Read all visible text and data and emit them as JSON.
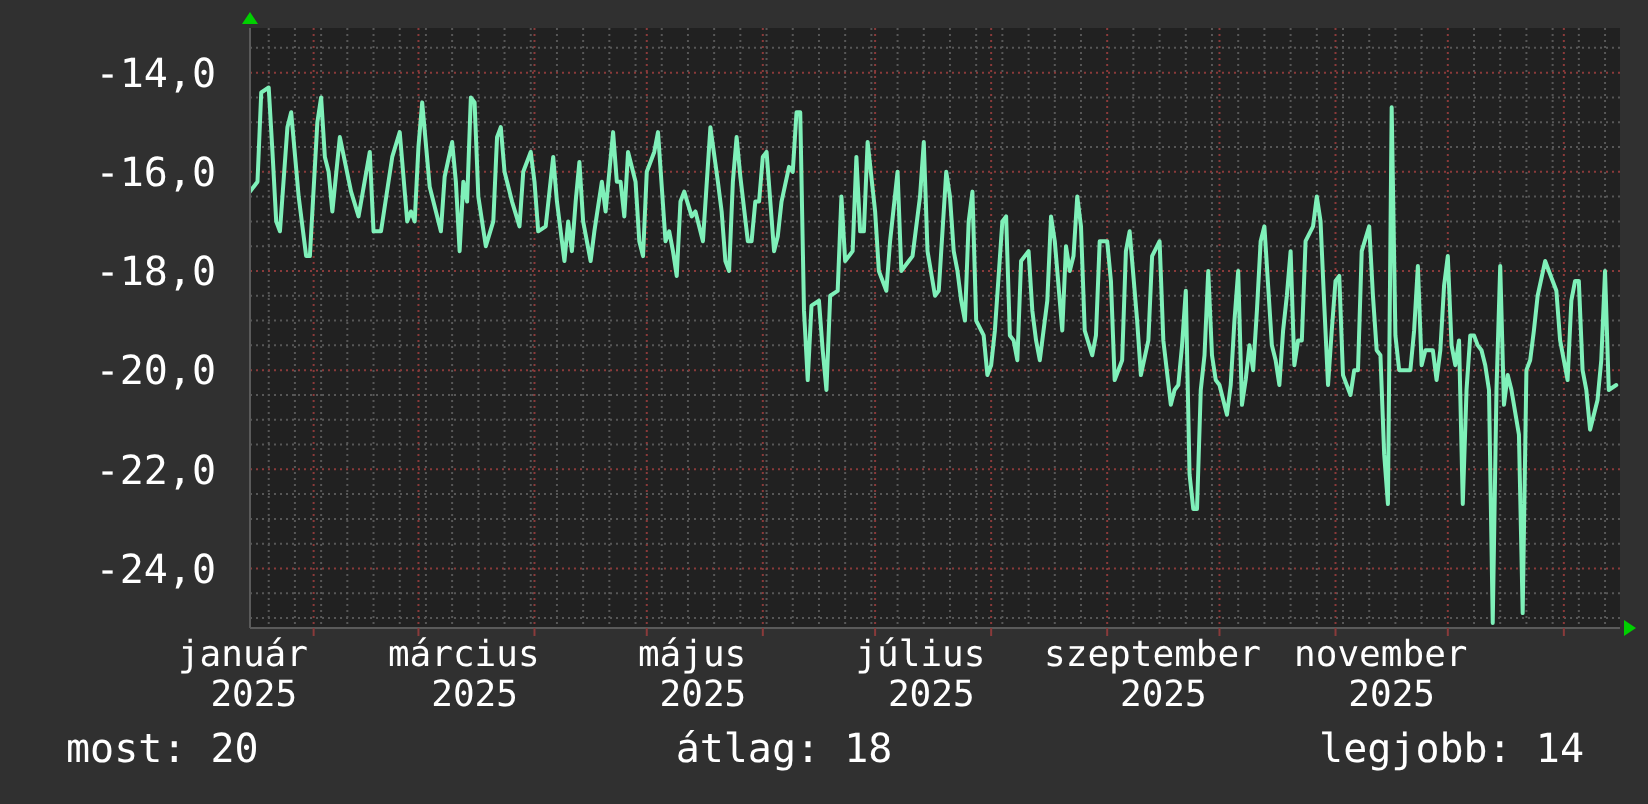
{
  "chart_data": {
    "type": "line",
    "color": "#7ff0b9",
    "x": [
      "2025-01-15",
      "2025-01-17",
      "2025-01-18",
      "2025-01-20",
      "2025-01-21",
      "2025-01-22",
      "2025-01-23",
      "2025-01-25",
      "2025-01-26",
      "2025-01-28",
      "2025-01-30",
      "2025-01-31",
      "2025-02-02",
      "2025-02-03",
      "2025-02-04",
      "2025-02-05",
      "2025-02-06",
      "2025-02-08",
      "2025-02-11",
      "2025-02-13",
      "2025-02-16",
      "2025-02-17",
      "2025-02-19",
      "2025-02-22",
      "2025-02-24",
      "2025-02-26",
      "2025-02-27",
      "2025-02-28",
      "2025-03-01",
      "2025-03-02",
      "2025-03-04",
      "2025-03-07",
      "2025-03-08",
      "2025-03-10",
      "2025-03-11",
      "2025-03-12",
      "2025-03-13",
      "2025-03-14",
      "2025-03-15",
      "2025-03-16",
      "2025-03-17",
      "2025-03-19",
      "2025-03-21",
      "2025-03-22",
      "2025-03-23",
      "2025-03-24",
      "2025-03-26",
      "2025-03-28",
      "2025-03-29",
      "2025-03-31",
      "2025-04-01",
      "2025-04-02",
      "2025-04-04",
      "2025-04-05",
      "2025-04-06",
      "2025-04-07",
      "2025-04-09",
      "2025-04-10",
      "2025-04-11",
      "2025-04-12",
      "2025-04-13",
      "2025-04-14",
      "2025-04-16",
      "2025-04-17",
      "2025-04-19",
      "2025-04-20",
      "2025-04-22",
      "2025-04-23",
      "2025-04-24",
      "2025-04-25",
      "2025-04-26",
      "2025-04-28",
      "2025-04-29",
      "2025-04-30",
      "2025-05-01",
      "2025-05-03",
      "2025-05-04",
      "2025-05-06",
      "2025-05-07",
      "2025-05-08",
      "2025-05-09",
      "2025-05-10",
      "2025-05-11",
      "2025-05-13",
      "2025-05-14",
      "2025-05-16",
      "2025-05-18",
      "2025-05-20",
      "2025-05-21",
      "2025-05-22",
      "2025-05-23",
      "2025-05-24",
      "2025-05-25",
      "2025-05-26",
      "2025-05-28",
      "2025-05-29",
      "2025-05-30",
      "2025-05-31",
      "2025-06-01",
      "2025-06-02",
      "2025-06-04",
      "2025-06-05",
      "2025-06-06",
      "2025-06-08",
      "2025-06-09",
      "2025-06-10",
      "2025-06-11",
      "2025-06-12",
      "2025-06-13",
      "2025-06-14",
      "2025-06-16",
      "2025-06-17",
      "2025-06-18",
      "2025-06-19",
      "2025-06-21",
      "2025-06-22",
      "2025-06-23",
      "2025-06-25",
      "2025-06-26",
      "2025-06-27",
      "2025-06-28",
      "2025-06-29",
      "2025-07-01",
      "2025-07-02",
      "2025-07-04",
      "2025-07-05",
      "2025-07-07",
      "2025-07-08",
      "2025-07-10",
      "2025-07-11",
      "2025-07-13",
      "2025-07-14",
      "2025-07-15",
      "2025-07-17",
      "2025-07-18",
      "2025-07-20",
      "2025-07-21",
      "2025-07-22",
      "2025-07-23",
      "2025-07-24",
      "2025-07-25",
      "2025-07-26",
      "2025-07-27",
      "2025-07-28",
      "2025-07-30",
      "2025-07-31",
      "2025-08-01",
      "2025-08-02",
      "2025-08-04",
      "2025-08-05",
      "2025-08-06",
      "2025-08-07",
      "2025-08-08",
      "2025-08-09",
      "2025-08-11",
      "2025-08-12",
      "2025-08-13",
      "2025-08-14",
      "2025-08-16",
      "2025-08-17",
      "2025-08-18",
      "2025-08-20",
      "2025-08-21",
      "2025-08-22",
      "2025-08-23",
      "2025-08-24",
      "2025-08-25",
      "2025-08-26",
      "2025-08-28",
      "2025-08-29",
      "2025-08-30",
      "2025-09-01",
      "2025-09-02",
      "2025-09-03",
      "2025-09-05",
      "2025-09-06",
      "2025-09-07",
      "2025-09-09",
      "2025-09-10",
      "2025-09-12",
      "2025-09-13",
      "2025-09-15",
      "2025-09-16",
      "2025-09-18",
      "2025-09-19",
      "2025-09-20",
      "2025-09-21",
      "2025-09-22",
      "2025-09-23",
      "2025-09-24",
      "2025-09-25",
      "2025-09-26",
      "2025-09-27",
      "2025-09-28",
      "2025-09-29",
      "2025-09-30",
      "2025-10-01",
      "2025-10-03",
      "2025-10-04",
      "2025-10-05",
      "2025-10-06",
      "2025-10-07",
      "2025-10-08",
      "2025-10-09",
      "2025-10-10",
      "2025-10-11",
      "2025-10-12",
      "2025-10-13",
      "2025-10-14",
      "2025-10-15",
      "2025-10-16",
      "2025-10-17",
      "2025-10-18",
      "2025-10-19",
      "2025-10-20",
      "2025-10-21",
      "2025-10-22",
      "2025-10-23",
      "2025-10-24",
      "2025-10-26",
      "2025-10-27",
      "2025-10-28",
      "2025-10-29",
      "2025-10-30",
      "2025-10-31",
      "2025-11-01",
      "2025-11-02",
      "2025-11-03",
      "2025-11-05",
      "2025-11-06",
      "2025-11-07",
      "2025-11-08",
      "2025-11-10",
      "2025-11-11",
      "2025-11-12",
      "2025-11-13",
      "2025-11-14",
      "2025-11-15",
      "2025-11-16",
      "2025-11-17",
      "2025-11-18",
      "2025-11-20",
      "2025-11-21",
      "2025-11-22",
      "2025-11-23",
      "2025-11-24",
      "2025-11-25",
      "2025-11-27",
      "2025-11-28",
      "2025-11-29",
      "2025-11-30",
      "2025-12-01",
      "2025-12-02",
      "2025-12-03",
      "2025-12-04",
      "2025-12-05",
      "2025-12-06",
      "2025-12-07",
      "2025-12-08",
      "2025-12-09",
      "2025-12-10",
      "2025-12-11",
      "2025-12-12",
      "2025-12-13",
      "2025-12-14",
      "2025-12-15",
      "2025-12-16",
      "2025-12-17",
      "2025-12-18",
      "2025-12-20",
      "2025-12-21",
      "2025-12-22",
      "2025-12-23",
      "2025-12-24",
      "2025-12-25",
      "2025-12-27",
      "2025-12-28",
      "2025-12-30",
      "2025-12-31",
      "2026-01-02",
      "2026-01-03",
      "2026-01-04",
      "2026-01-05",
      "2026-01-06",
      "2026-01-07",
      "2026-01-08",
      "2026-01-10",
      "2026-01-11",
      "2026-01-12",
      "2026-01-13",
      "2026-01-15"
    ],
    "values": [
      -16.4,
      -16.2,
      -14.4,
      -14.3,
      -15.6,
      -17.0,
      -17.2,
      -15.1,
      -14.8,
      -16.5,
      -17.7,
      -17.7,
      -15.0,
      -14.5,
      -15.7,
      -16.0,
      -16.8,
      -15.3,
      -16.4,
      -16.9,
      -15.6,
      -17.2,
      -17.2,
      -15.7,
      -15.2,
      -17.0,
      -16.8,
      -17.0,
      -15.5,
      -14.6,
      -16.3,
      -17.2,
      -16.1,
      -15.4,
      -16.2,
      -17.6,
      -16.2,
      -16.6,
      -14.5,
      -14.6,
      -16.5,
      -17.5,
      -17.0,
      -15.3,
      -15.1,
      -16.0,
      -16.6,
      -17.1,
      -16.0,
      -15.6,
      -16.2,
      -17.2,
      -17.1,
      -16.4,
      -15.7,
      -16.6,
      -17.8,
      -17.0,
      -17.6,
      -16.6,
      -15.8,
      -17.0,
      -17.8,
      -17.2,
      -16.2,
      -16.8,
      -15.2,
      -16.2,
      -16.2,
      -16.9,
      -15.6,
      -16.2,
      -17.4,
      -17.7,
      -16.0,
      -15.6,
      -15.2,
      -17.4,
      -17.2,
      -17.6,
      -18.1,
      -16.6,
      -16.4,
      -16.9,
      -16.8,
      -17.4,
      -15.1,
      -16.2,
      -16.8,
      -17.8,
      -18.0,
      -16.2,
      -15.3,
      -16.1,
      -17.4,
      -17.4,
      -16.6,
      -16.6,
      -15.7,
      -15.6,
      -17.6,
      -17.3,
      -16.6,
      -15.9,
      -16.0,
      -14.8,
      -14.8,
      -18.8,
      -20.2,
      -18.7,
      -18.6,
      -19.6,
      -20.4,
      -18.5,
      -18.4,
      -16.5,
      -17.8,
      -17.6,
      -15.7,
      -17.2,
      -17.2,
      -15.4,
      -16.8,
      -18.0,
      -18.4,
      -17.4,
      -16.0,
      -18.0,
      -17.8,
      -17.7,
      -16.5,
      -15.4,
      -17.6,
      -18.5,
      -18.4,
      -16.0,
      -16.5,
      -17.6,
      -18.0,
      -18.6,
      -19.0,
      -17.0,
      -16.4,
      -19.0,
      -19.3,
      -20.1,
      -19.9,
      -19.2,
      -17.0,
      -16.9,
      -19.3,
      -19.4,
      -19.8,
      -17.8,
      -17.6,
      -18.8,
      -19.4,
      -19.8,
      -18.6,
      -16.9,
      -17.4,
      -19.2,
      -17.5,
      -18.0,
      -17.7,
      -16.5,
      -17.1,
      -19.2,
      -19.7,
      -19.3,
      -17.4,
      -17.4,
      -18.2,
      -20.2,
      -19.8,
      -17.6,
      -17.2,
      -19.0,
      -20.1,
      -19.4,
      -17.7,
      -17.4,
      -19.4,
      -20.7,
      -20.4,
      -20.3,
      -19.5,
      -18.4,
      -22.1,
      -22.8,
      -22.8,
      -20.4,
      -19.7,
      -18.0,
      -19.7,
      -20.2,
      -20.3,
      -20.9,
      -20.3,
      -19.0,
      -18.0,
      -20.7,
      -20.2,
      -19.5,
      -20.0,
      -18.8,
      -17.4,
      -17.1,
      -18.3,
      -19.5,
      -19.8,
      -20.3,
      -19.2,
      -18.5,
      -17.6,
      -19.9,
      -19.4,
      -19.4,
      -17.4,
      -17.1,
      -16.5,
      -17.0,
      -18.7,
      -20.3,
      -19.2,
      -18.2,
      -18.1,
      -20.1,
      -20.5,
      -20.0,
      -20.0,
      -17.6,
      -17.1,
      -18.5,
      -19.6,
      -19.7,
      -21.7,
      -22.7,
      -14.7,
      -19.3,
      -20.0,
      -20.0,
      -20.0,
      -19.2,
      -17.9,
      -19.9,
      -19.6,
      -19.6,
      -20.2,
      -19.6,
      -18.3,
      -17.7,
      -19.5,
      -19.9,
      -19.4,
      -22.7,
      -20.4,
      -19.3,
      -19.3,
      -19.5,
      -19.6,
      -19.9,
      -20.4,
      -25.1,
      -20.4,
      -17.9,
      -20.7,
      -20.1,
      -20.4,
      -21.3,
      -24.9,
      -20.0,
      -19.8,
      -19.2,
      -18.5,
      -17.8,
      -18.0,
      -18.4,
      -19.4,
      -20.2,
      -18.6,
      -18.2,
      -18.2,
      -20.0,
      -20.4,
      -21.2,
      -20.6,
      -19.8,
      -18.0,
      -20.4,
      -20.3
    ],
    "xlim": [
      "2025-01-15",
      "2026-01-16"
    ],
    "xticks": [
      {
        "value": "2025-01-16",
        "label": "január 2025"
      },
      {
        "value": "2025-02-01",
        "label": null
      },
      {
        "value": "2025-03-01",
        "label": null
      },
      {
        "value": "2025-03-16",
        "label": "március 2025"
      },
      {
        "value": "2025-04-01",
        "label": null
      },
      {
        "value": "2025-05-01",
        "label": null
      },
      {
        "value": "2025-05-16",
        "label": "május 2025"
      },
      {
        "value": "2025-06-01",
        "label": null
      },
      {
        "value": "2025-07-01",
        "label": null
      },
      {
        "value": "2025-07-16",
        "label": "július 2025"
      },
      {
        "value": "2025-08-01",
        "label": null
      },
      {
        "value": "2025-09-01",
        "label": null
      },
      {
        "value": "2025-09-16",
        "label": "szeptember 2025"
      },
      {
        "value": "2025-10-01",
        "label": null
      },
      {
        "value": "2025-11-01",
        "label": null
      },
      {
        "value": "2025-11-16",
        "label": "november 2025"
      },
      {
        "value": "2025-12-01",
        "label": null
      },
      {
        "value": "2026-01-01",
        "label": null
      }
    ],
    "ylim": [
      -25.2,
      -13.1
    ],
    "yticks": [
      {
        "value": -24,
        "label": "-24,0"
      },
      {
        "value": -22,
        "label": "-22,0"
      },
      {
        "value": -20,
        "label": "-20,0"
      },
      {
        "value": -18,
        "label": "-18,0"
      },
      {
        "value": -16,
        "label": "-16,0"
      },
      {
        "value": -14,
        "label": "-14,0"
      }
    ],
    "grid": true,
    "annotations": [
      "most: 20",
      "átlag: 18",
      "legjobb: 14"
    ]
  }
}
